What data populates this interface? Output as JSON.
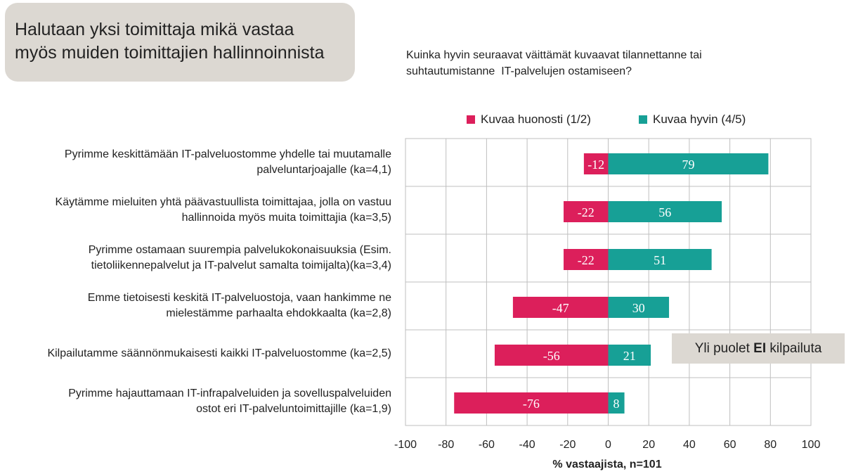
{
  "title": {
    "line1": "Halutaan yksi toimittaja mikä vastaa",
    "line2": "myös muiden toimittajien hallinnoinnista"
  },
  "question": {
    "line1": "Kuinka hyvin seuraavat väittämät kuvaavat tilannettanne tai",
    "line2": "suhtautumistanne  IT-palvelujen ostamiseen?"
  },
  "callout": {
    "before": "Yli puolet ",
    "bold": "EI",
    "after": " kilpailuta"
  },
  "colors": {
    "negative": "#dc1f5b",
    "positive": "#17a096",
    "grid": "#bfbfbf",
    "callout_bg": "#dcd8d2"
  },
  "chart_data": {
    "type": "bar",
    "orientation": "horizontal",
    "stacked": "diverging",
    "xlabel": "% vastaajista, n=101",
    "xlim": [
      -100,
      100
    ],
    "xticks": [
      -100,
      -80,
      -60,
      -40,
      -20,
      0,
      20,
      40,
      60,
      80,
      100
    ],
    "grid": true,
    "legend_placement": "top",
    "categories": [
      [
        "Pyrimme keskittämään IT-palveluostomme yhdelle tai muutamalle",
        "palveluntarjoajalle (ka=4,1)"
      ],
      [
        "Käytämme mieluiten yhtä päävastuullista toimittajaa, jolla on vastuu",
        "hallinnoida myös muita toimittajia (ka=3,5)"
      ],
      [
        "Pyrimme ostamaan suurempia palvelukokonaisuuksia (Esim.",
        "tietoliikennepalvelut ja IT-palvelut samalta toimijalta)(ka=3,4)"
      ],
      [
        "Emme tietoisesti keskitä IT-palveluostoja, vaan hankimme ne",
        "mielestämme parhaalta ehdokkaalta (ka=2,8)"
      ],
      [
        "Kilpailutamme säännönmukaisesti kaikki IT-palveluostomme (ka=2,5)"
      ],
      [
        "Pyrimme hajauttamaan IT-infrapalveluiden ja sovelluspalveluiden",
        "ostot eri IT-palveluntoimittajille (ka=1,9)"
      ]
    ],
    "series": [
      {
        "name": "Kuvaa huonosti (1/2)",
        "values": [
          -12,
          -22,
          -22,
          -47,
          -56,
          -76
        ]
      },
      {
        "name": "Kuvaa hyvin (4/5)",
        "values": [
          79,
          56,
          51,
          30,
          21,
          8
        ]
      }
    ]
  }
}
